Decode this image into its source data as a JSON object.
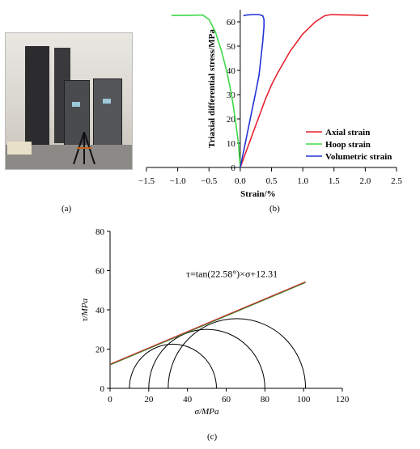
{
  "panel_a": {
    "caption": "(a)"
  },
  "panel_b": {
    "caption": "(b)"
  },
  "panel_c": {
    "caption": "(c)"
  },
  "chart_data": [
    {
      "type": "line",
      "panel": "b",
      "xlabel": "Strain/%",
      "ylabel": "Triaxial differential stress/MPa",
      "xlim": [
        -1.5,
        2.5
      ],
      "ylim": [
        0,
        65
      ],
      "xticks": [
        -1.5,
        -1.0,
        -0.5,
        0.0,
        0.5,
        1.0,
        1.5,
        2.0,
        2.5
      ],
      "xtick_labels": [
        "−1.5",
        "−1.0",
        "−0.5",
        "0.0",
        "0.5",
        "1.0",
        "1.5",
        "2.0",
        "2.5"
      ],
      "yticks": [
        0,
        10,
        20,
        30,
        40,
        50,
        60
      ],
      "legend_position": "bottom-right",
      "series": [
        {
          "name": "Axial strain",
          "color": "#e8232f",
          "x": [
            0.0,
            0.1,
            0.2,
            0.3,
            0.4,
            0.5,
            0.6,
            0.8,
            1.0,
            1.2,
            1.35,
            1.45,
            1.6,
            1.8,
            2.05
          ],
          "y": [
            0,
            7,
            14,
            21,
            28,
            34,
            39,
            48,
            55,
            60,
            62.5,
            63,
            62.9,
            62.8,
            62.6
          ]
        },
        {
          "name": "Hoop strain",
          "color": "#3fd94a",
          "x": [
            0.0,
            -0.03,
            -0.08,
            -0.14,
            -0.22,
            -0.3,
            -0.4,
            -0.5,
            -0.6,
            -0.8,
            -1.1
          ],
          "y": [
            0,
            10,
            20,
            30,
            40,
            48,
            56,
            61,
            62.8,
            62.7,
            62.6
          ]
        },
        {
          "name": "Volumetric strain",
          "color": "#2233d6",
          "x": [
            0.0,
            0.08,
            0.16,
            0.24,
            0.3,
            0.33,
            0.36,
            0.38,
            0.38,
            0.36,
            0.3,
            0.2,
            0.1,
            0.05
          ],
          "y": [
            0,
            10,
            20,
            30,
            38,
            45,
            52,
            58,
            61,
            62.5,
            63,
            63,
            62.8,
            62.5
          ]
        }
      ]
    },
    {
      "type": "scatter",
      "panel": "c",
      "xlabel": "σ/MPa",
      "ylabel": "τ/MPa",
      "xlim": [
        0,
        120
      ],
      "ylim": [
        0,
        80
      ],
      "xticks": [
        0,
        20,
        40,
        60,
        80,
        100,
        120
      ],
      "yticks": [
        0,
        20,
        40,
        60,
        80
      ],
      "annotation": "τ=tan(22.58°)×σ+12.31",
      "envelope": {
        "slope_deg": 22.58,
        "intercept": 12.31,
        "x_range": [
          0,
          101
        ],
        "colors": [
          "#e8232f",
          "#4a7a2a"
        ]
      },
      "mohr_circles": [
        {
          "sigma3": 10,
          "sigma1": 55
        },
        {
          "sigma3": 20,
          "sigma1": 80
        },
        {
          "sigma3": 30,
          "sigma1": 101
        }
      ]
    }
  ]
}
